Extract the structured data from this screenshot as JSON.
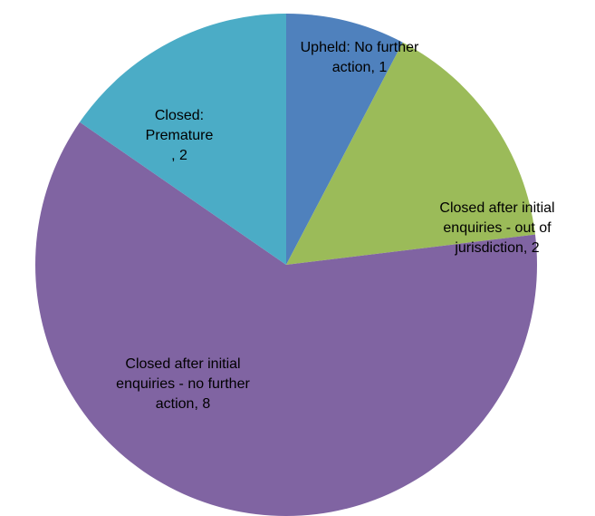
{
  "chart_data": {
    "type": "pie",
    "categories": [
      "Upheld: No further action",
      "Closed after initial enquiries - out of jurisdiction",
      "Closed after initial enquiries - no further action",
      "Closed: Premature"
    ],
    "values": [
      1,
      2,
      8,
      2
    ],
    "value_labels": [
      "Upheld: No further action, 1",
      "Closed after initial enquiries - out of jurisdiction, 2",
      "Closed after initial enquiries - no further action, 8",
      "Closed: Premature , 2"
    ],
    "colors": [
      "#4f81bd",
      "#9bbb59",
      "#8064a2",
      "#4bacc6"
    ]
  }
}
